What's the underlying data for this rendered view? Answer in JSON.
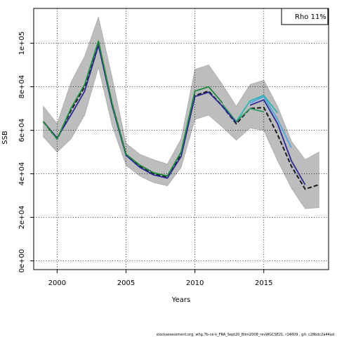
{
  "chart_data": {
    "type": "line",
    "xlabel": "Years",
    "ylabel": "SSB",
    "xlim": [
      1998.3,
      2019.7
    ],
    "ylim": [
      -4000,
      116000
    ],
    "x_ticks": [
      2000,
      2005,
      2010,
      2015
    ],
    "x_tick_labels": [
      "2000",
      "2005",
      "2010",
      "2015"
    ],
    "y_ticks": [
      0,
      20000,
      40000,
      60000,
      80000,
      100000
    ],
    "y_tick_labels": [
      "0e+00",
      "2e+04",
      "4e+04",
      "6e+04",
      "8e+04",
      "1e+05"
    ],
    "grid": true,
    "legend": {
      "placement": "top-right",
      "text": "Rho 11%"
    },
    "footer": "stockassessment.org, whg.7b-ce-k_FRA_Sept20_Blim2008_revWGCSE21, r14609 , git: c28bdc2a44ad",
    "confidence_band": {
      "x": [
        1999,
        2000,
        2001,
        2002,
        2003,
        2004,
        2005,
        2006,
        2007,
        2008,
        2009,
        2010,
        2011,
        2012,
        2013,
        2014,
        2015,
        2016,
        2017,
        2018,
        2019
      ],
      "upper": [
        71000,
        63000,
        82000,
        94000,
        112000,
        84000,
        54000,
        49000,
        46500,
        44500,
        56000,
        88000,
        90000,
        81000,
        71000,
        81000,
        83000,
        71000,
        55000,
        46500,
        50000
      ],
      "lower": [
        57000,
        50000,
        56000,
        67000,
        89000,
        62000,
        44000,
        39000,
        36000,
        34500,
        43000,
        65000,
        67000,
        61500,
        55500,
        61000,
        60000,
        46000,
        33500,
        24000,
        24500
      ]
    },
    "series": [
      {
        "color": "#191919",
        "dash": true,
        "x": [
          1999,
          2000,
          2001,
          2002,
          2003,
          2004,
          2005,
          2006,
          2007,
          2008,
          2009,
          2010,
          2011,
          2012,
          2013,
          2014,
          2015,
          2016,
          2017,
          2018,
          2019
        ],
        "y": [
          64000,
          56000,
          69000,
          80000,
          100000,
          72000,
          49000,
          43500,
          40000,
          38500,
          49000,
          76000,
          78000,
          71000,
          63000,
          70000,
          70500,
          58000,
          43500,
          33000,
          35000
        ]
      },
      {
        "color": "#2b2b9a",
        "dash": false,
        "x": [
          2014,
          2015,
          2016,
          2017,
          2018
        ],
        "y": [
          71500,
          74000,
          63000,
          46000,
          35000
        ]
      },
      {
        "color": "#4aa6e6",
        "dash": false,
        "x": [
          2014,
          2015,
          2016,
          2017
        ],
        "y": [
          72500,
          75500,
          65000,
          52000
        ]
      },
      {
        "color": "#2ab8b0",
        "dash": false,
        "x": [
          2013,
          2014,
          2015,
          2016
        ],
        "y": [
          64000,
          73500,
          76000,
          68000
        ]
      },
      {
        "color": "#2f9a68",
        "dash": false,
        "x": [
          2012,
          2013,
          2014,
          2015
        ],
        "y": [
          72000,
          64000,
          70000,
          68500
        ]
      },
      {
        "color": "#2b2b9a",
        "dash": false,
        "x": [
          1999,
          2000,
          2001,
          2002,
          2003,
          2004,
          2005,
          2006,
          2007,
          2008,
          2009,
          2010,
          2011,
          2012,
          2013
        ],
        "y": [
          64000,
          56500,
          67000,
          78000,
          99000,
          71000,
          48500,
          43000,
          39500,
          38000,
          48000,
          75500,
          77500,
          71000,
          63500
        ]
      },
      {
        "color": "#1a8a3a",
        "dash": false,
        "x": [
          1999,
          2000,
          2001,
          2002,
          2003,
          2004,
          2005,
          2006,
          2007,
          2008,
          2009,
          2010,
          2011,
          2012
        ],
        "y": [
          64000,
          56000,
          70000,
          81000,
          101000,
          72000,
          49000,
          44000,
          40500,
          39000,
          50000,
          78000,
          80000,
          72500
        ]
      }
    ]
  }
}
